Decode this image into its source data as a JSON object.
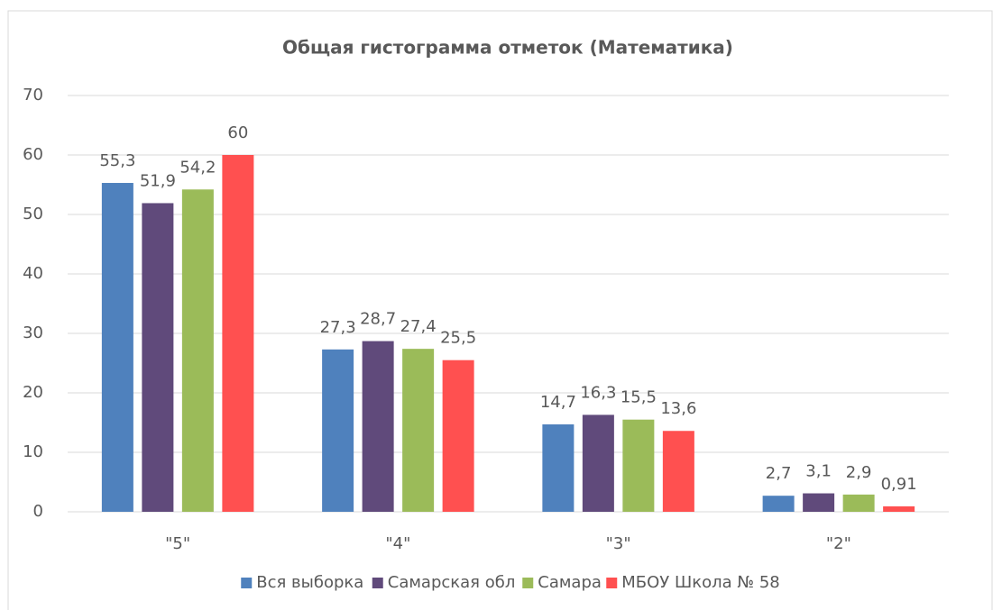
{
  "chart_data": {
    "type": "bar",
    "title": "Общая гистограмма отметок (Математика)",
    "categories": [
      "\"5\"",
      "\"4\"",
      "\"3\"",
      "\"2\""
    ],
    "series": [
      {
        "name": "Вся выборка",
        "color": "#4f81bd",
        "values": [
          55.3,
          27.3,
          14.7,
          2.7
        ],
        "value_labels": [
          "55,3",
          "27,3",
          "14,7",
          "2,7"
        ]
      },
      {
        "name": "Самарская обл",
        "color": "#604a7b",
        "values": [
          51.9,
          28.7,
          16.3,
          3.1
        ],
        "value_labels": [
          "51,9",
          "28,7",
          "16,3",
          "3,1"
        ]
      },
      {
        "name": "Самара",
        "color": "#9bbb59",
        "values": [
          54.2,
          27.4,
          15.5,
          2.9
        ],
        "value_labels": [
          "54,2",
          "27,4",
          "15,5",
          "2,9"
        ]
      },
      {
        "name": "МБОУ Школа № 58",
        "color": "#ff5050",
        "values": [
          60,
          25.5,
          13.6,
          0.91
        ],
        "value_labels": [
          "60",
          "25,5",
          "13,6",
          "0,91"
        ]
      }
    ],
    "ylim": [
      0,
      70
    ],
    "yticks": [
      0,
      10,
      20,
      30,
      40,
      50,
      60,
      70
    ],
    "grid": true,
    "legend": "bottom"
  }
}
